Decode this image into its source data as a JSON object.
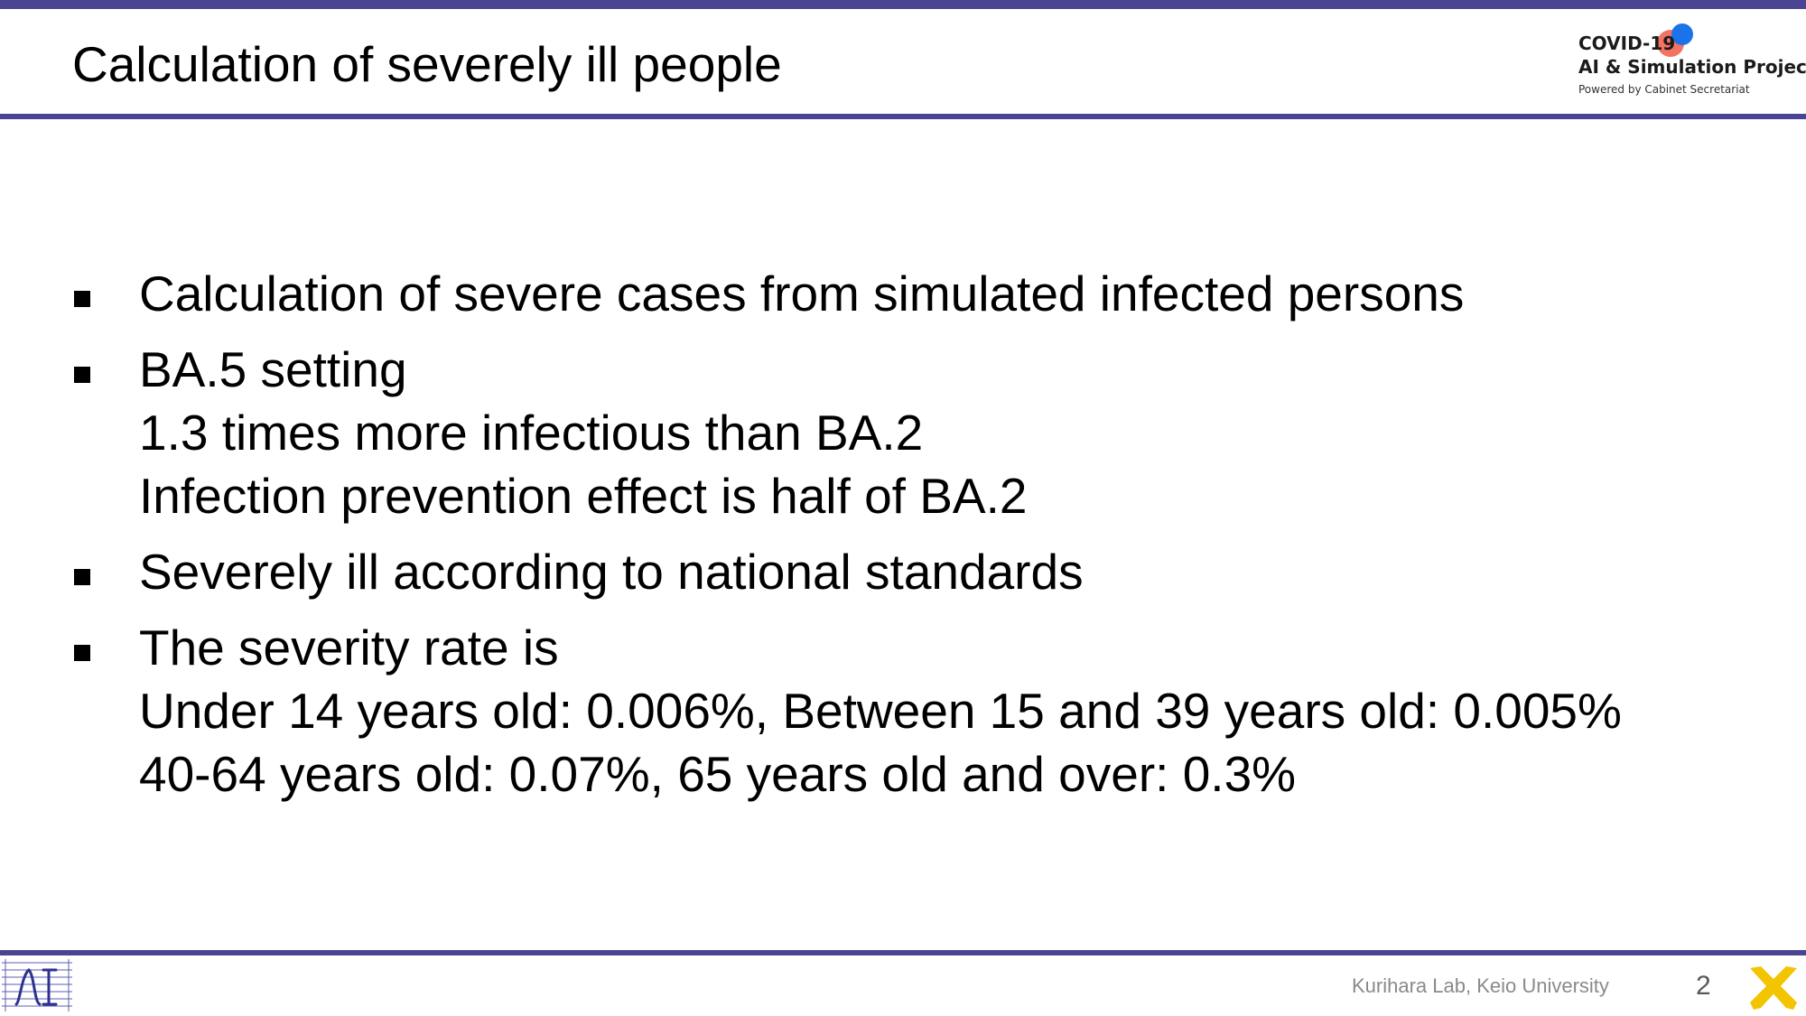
{
  "slide": {
    "title": "Calculation of severely ill people",
    "bullets": [
      {
        "lines": [
          "Calculation of severe cases from simulated infected persons"
        ]
      },
      {
        "lines": [
          "BA.5 setting",
          "1.3 times more infectious than BA.2",
          "Infection prevention effect is half of BA.2"
        ]
      },
      {
        "lines": [
          "Severely ill according to national standards"
        ]
      },
      {
        "lines": [
          "The severity rate is",
          "Under 14 years old: 0.006%, Between 15 and 39 years old: 0.005%",
          "40-64 years old: 0.07%, 65 years old and over: 0.3%"
        ]
      }
    ]
  },
  "project_logo": {
    "line1": "COVID-19",
    "line2": "AI & Simulation Project",
    "line3": "Powered by Cabinet Secretariat",
    "colors": {
      "red_dot": "#f26b5b",
      "blue_dot": "#1a73e8"
    }
  },
  "footer": {
    "lab_logo_icon": "ai-lab-logo-icon",
    "credit": "Kurihara Lab, Keio University",
    "page_number": "2",
    "university_logo_icon": "keio-pen-logo-icon"
  },
  "colors": {
    "accent": "#4a4592",
    "keio_yellow": "#f2c500"
  }
}
